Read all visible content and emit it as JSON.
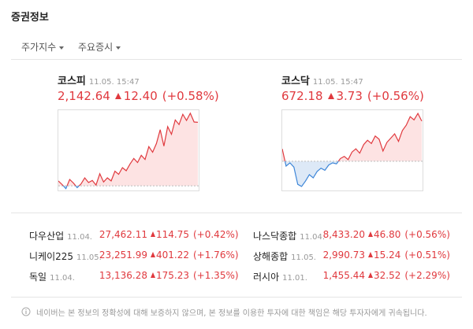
{
  "header": {
    "title": "증권정보"
  },
  "tabs": [
    "주가지수",
    "주요증시"
  ],
  "indices": [
    {
      "name": "코스피",
      "date": "11.05. 15:47",
      "value": "2,142.64",
      "change": "12.40",
      "rate": "(+0.58%)",
      "chart": {
        "baseline": 2130.24,
        "ylim": [
          2129.5,
          2145
        ],
        "values": [
          2131.2,
          2130.5,
          2129.7,
          2131.5,
          2130.8,
          2129.9,
          2130.6,
          2131.8,
          2130.9,
          2131.3,
          2130.4,
          2132.6,
          2131.0,
          2131.8,
          2131.2,
          2133.1,
          2132.5,
          2133.8,
          2133.2,
          2134.5,
          2135.6,
          2134.8,
          2136.2,
          2135.4,
          2137.9,
          2136.8,
          2138.5,
          2141.2,
          2138.0,
          2141.8,
          2140.3,
          2143.1,
          2142.2,
          2144.2,
          2143.0,
          2144.4,
          2142.7,
          2142.64
        ]
      }
    },
    {
      "name": "코스닥",
      "date": "11.05. 15:47",
      "value": "672.18",
      "change": "3.73",
      "rate": "(+0.56%)",
      "chart": {
        "baseline": 668.45,
        "ylim": [
          665.8,
          673.2
        ],
        "values": [
          669.6,
          668.0,
          668.3,
          667.9,
          666.3,
          666.1,
          666.6,
          667.2,
          666.9,
          667.5,
          667.8,
          667.6,
          668.1,
          668.3,
          668.2,
          668.7,
          668.9,
          668.6,
          669.3,
          669.6,
          669.2,
          670.0,
          670.4,
          670.1,
          670.8,
          670.5,
          669.4,
          670.2,
          670.6,
          671.0,
          670.3,
          671.3,
          671.8,
          672.6,
          672.3,
          672.9,
          672.18
        ]
      }
    }
  ],
  "world": [
    {
      "name": "다우산업",
      "date": "11.04.",
      "value": "27,462.11",
      "change": "114.75",
      "rate": "(+0.42%)"
    },
    {
      "name": "나스닥종합",
      "date": "11.04.",
      "value": "8,433.20",
      "change": "46.80",
      "rate": "(+0.56%)"
    },
    {
      "name": "니케이225",
      "date": "11.05.",
      "value": "23,251.99",
      "change": "401.22",
      "rate": "(+1.76%)"
    },
    {
      "name": "상해종합",
      "date": "11.05.",
      "value": "2,990.73",
      "change": "15.24",
      "rate": "(+0.51%)"
    },
    {
      "name": "독일",
      "date": "11.04.",
      "value": "13,136.28",
      "change": "175.23",
      "rate": "(+1.35%)"
    },
    {
      "name": "러시아",
      "date": "11.01.",
      "value": "1,455.44",
      "change": "32.52",
      "rate": "(+2.29%)"
    }
  ],
  "notice": "네이버는 본 정보의 정확성에 대해 보증하지 않으며, 본 정보를 이용한 투자에 대한 책임은 해당 투자자에게 귀속됩니다."
}
